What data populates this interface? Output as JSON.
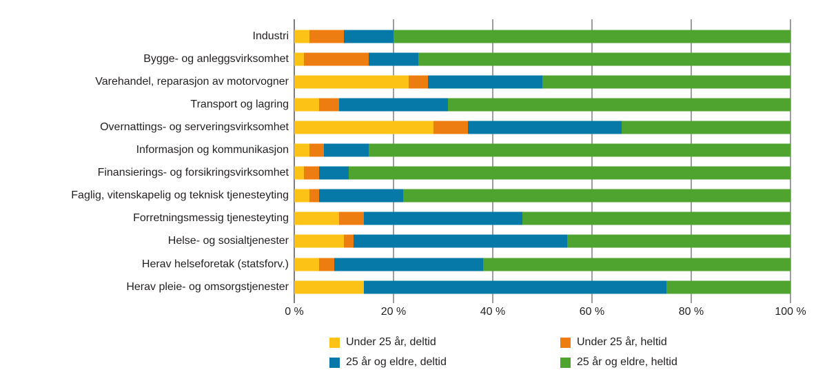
{
  "chart_data": {
    "type": "bar",
    "orientation": "horizontal",
    "stacked": true,
    "unit": "%",
    "categories": [
      "Industri",
      "Bygge- og anleggsvirksomhet",
      "Varehandel, reparasjon av motorvogner",
      "Transport og lagring",
      "Overnattings- og serveringsvirksomhet",
      "Informasjon og kommunikasjon",
      "Finansierings- og forsikringsvirksomhet",
      "Faglig, vitenskapelig og teknisk tjenesteyting",
      "Forretningsmessig tjenesteyting",
      "Helse- og sosialtjenester",
      "Herav helseforetak (statsforv.)",
      "Herav pleie- og omsorgstjenester"
    ],
    "series": [
      {
        "name": "Under 25 år, deltid",
        "color": "#FDC216",
        "values": [
          3,
          2,
          23,
          5,
          28,
          3,
          2,
          3,
          9,
          10,
          5,
          14
        ]
      },
      {
        "name": "Under 25 år, heltid",
        "color": "#EE7D11",
        "values": [
          7,
          13,
          4,
          4,
          7,
          3,
          3,
          2,
          5,
          2,
          3,
          0
        ]
      },
      {
        "name": "25 år og eldre, deltid",
        "color": "#0679A8",
        "values": [
          10,
          10,
          23,
          22,
          31,
          9,
          6,
          17,
          32,
          43,
          30,
          61
        ]
      },
      {
        "name": "25 år og eldre, heltid",
        "color": "#4FA32F",
        "values": [
          80,
          75,
          50,
          69,
          34,
          85,
          89,
          78,
          54,
          45,
          62,
          25
        ]
      }
    ],
    "x_axis": {
      "min": 0,
      "max": 100,
      "ticks": [
        {
          "value": 0,
          "label": "0 %"
        },
        {
          "value": 20,
          "label": "20 %"
        },
        {
          "value": 40,
          "label": "40 %"
        },
        {
          "value": 60,
          "label": "60 %"
        },
        {
          "value": 80,
          "label": "80 %"
        },
        {
          "value": 100,
          "label": "100 %"
        }
      ]
    },
    "legend_position": "bottom",
    "grid": true
  },
  "colors": {
    "background": "#ffffff",
    "gridline": "#9d9d9d",
    "axis_line": "#7c7c7c",
    "text": "#231f20"
  }
}
